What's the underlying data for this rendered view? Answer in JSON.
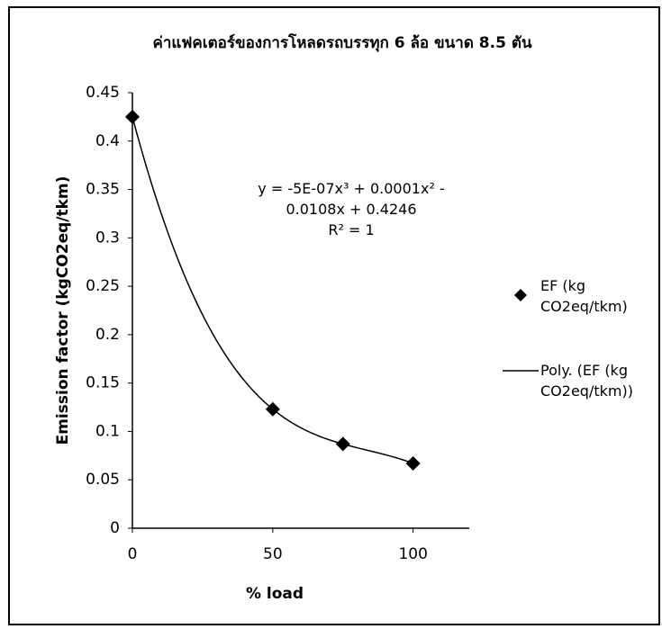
{
  "chart_data": {
    "type": "scatter",
    "title": "ค่าแฟคเตอร์ของการโหลดรถบรรทุก 6 ล้อ ขนาด 8.5 ตัน",
    "x_label": "% load",
    "y_label": "Emission factor (kgCO2eq/tkm)",
    "x": [
      0,
      50,
      75,
      100
    ],
    "series": [
      {
        "name": "EF (kg CO2eq/tkm)",
        "color": "#000000",
        "values": [
          0.425,
          0.123,
          0.087,
          0.067
        ]
      }
    ],
    "trendline": {
      "name": "Poly. (EF (kg CO2eq/tkm))",
      "color": "#000000",
      "equation": "y = -5E-07x³ + 0.0001x² - 0.0108x + 0.4246",
      "r_squared": "R² = 1"
    },
    "xlim": [
      0,
      120
    ],
    "xticks": [
      0,
      50,
      100
    ],
    "ylim": [
      0,
      0.45
    ],
    "yticks": [
      0,
      0.05,
      0.1,
      0.15,
      0.2,
      0.25,
      0.3,
      0.35,
      0.4,
      0.45
    ],
    "grid": false
  }
}
